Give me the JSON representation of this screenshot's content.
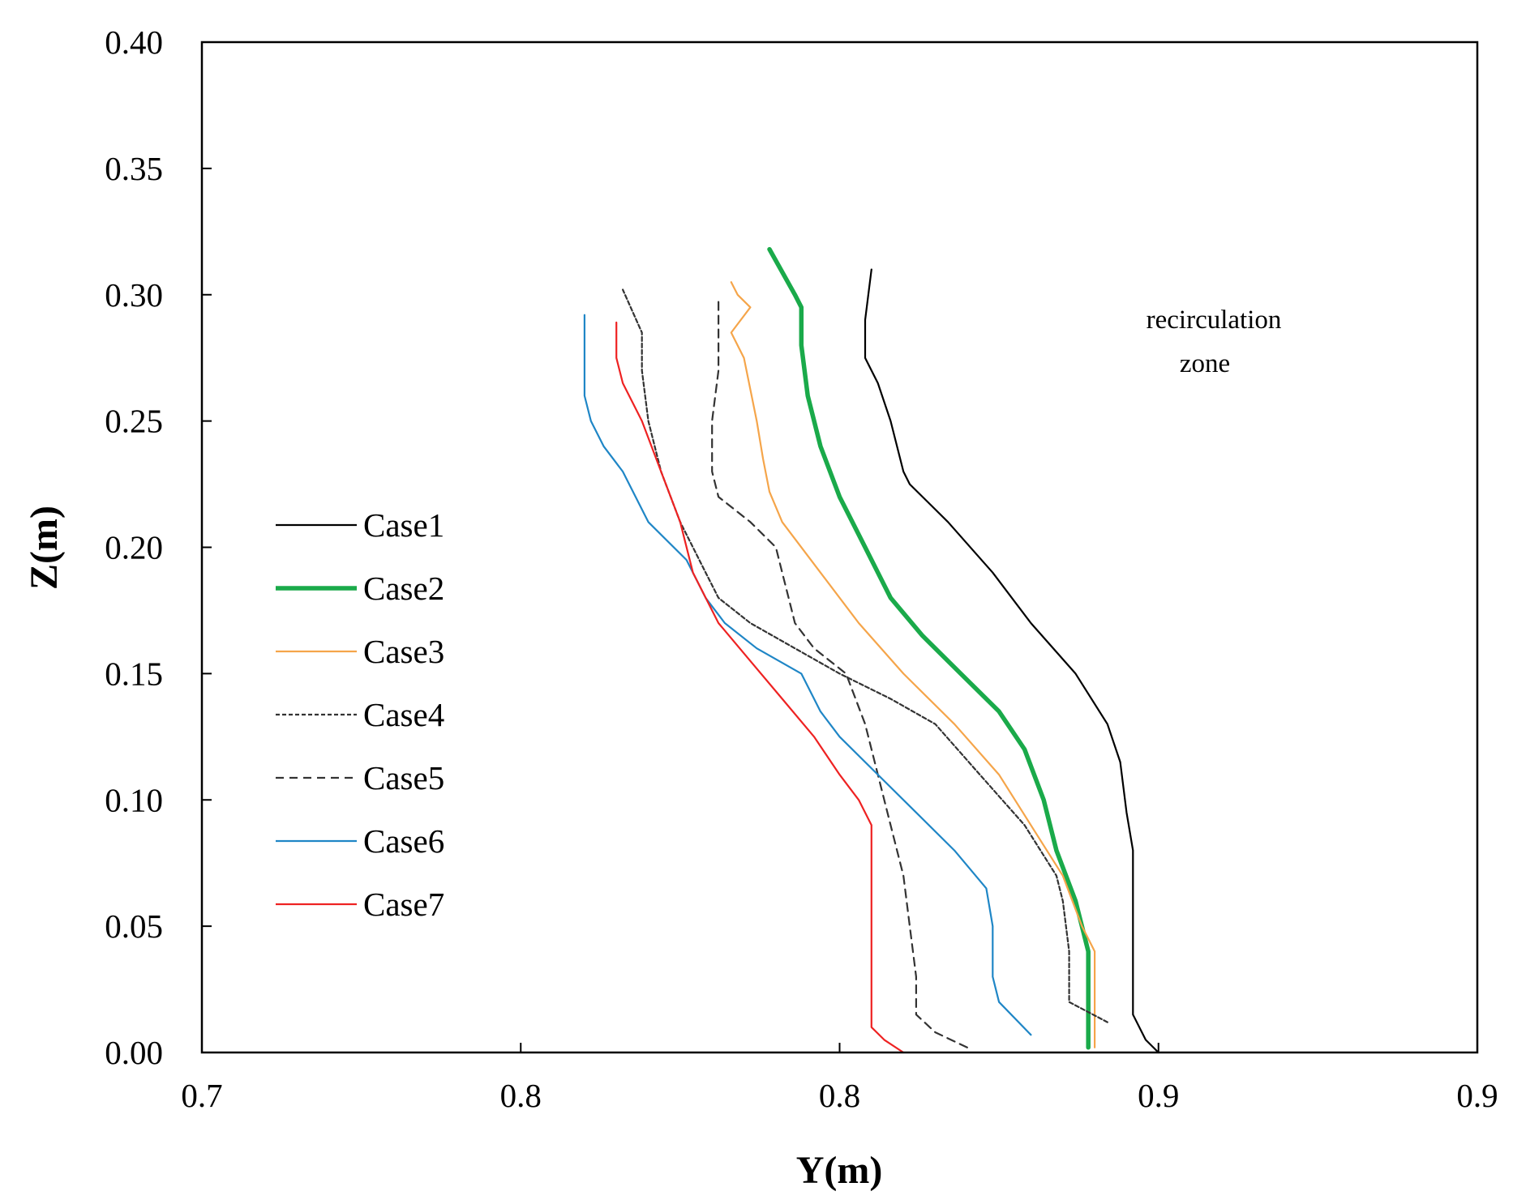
{
  "chart_data": {
    "type": "line",
    "title": "",
    "xlabel": "Y(m)",
    "ylabel": "Z(m)",
    "xlim": [
      0.7,
      0.9
    ],
    "ylim": [
      0.0,
      0.4
    ],
    "x_tick_labels": [
      "0.7",
      "0.8",
      "0.8",
      "0.9",
      "0.9"
    ],
    "y_tick_labels": [
      "0.00",
      "0.05",
      "0.10",
      "0.15",
      "0.20",
      "0.25",
      "0.30",
      "0.35",
      "0.40"
    ],
    "grid": false,
    "legend_position": "left",
    "annotation": [
      "recirculation",
      "zone"
    ],
    "series": [
      {
        "name": "Case1",
        "color": "#000000",
        "style": "solid",
        "weight": "thin",
        "points": [
          [
            0.85,
            0.0
          ],
          [
            0.848,
            0.005
          ],
          [
            0.846,
            0.015
          ],
          [
            0.846,
            0.03
          ],
          [
            0.846,
            0.05
          ],
          [
            0.846,
            0.08
          ],
          [
            0.845,
            0.095
          ],
          [
            0.844,
            0.115
          ],
          [
            0.842,
            0.13
          ],
          [
            0.837,
            0.15
          ],
          [
            0.83,
            0.17
          ],
          [
            0.824,
            0.19
          ],
          [
            0.817,
            0.21
          ],
          [
            0.811,
            0.225
          ],
          [
            0.81,
            0.23
          ],
          [
            0.808,
            0.25
          ],
          [
            0.806,
            0.265
          ],
          [
            0.804,
            0.275
          ],
          [
            0.804,
            0.29
          ],
          [
            0.805,
            0.31
          ]
        ]
      },
      {
        "name": "Case2",
        "color": "#1aaa4a",
        "style": "solid",
        "weight": "thick",
        "points": [
          [
            0.839,
            0.002
          ],
          [
            0.839,
            0.02
          ],
          [
            0.839,
            0.04
          ],
          [
            0.837,
            0.06
          ],
          [
            0.834,
            0.08
          ],
          [
            0.832,
            0.1
          ],
          [
            0.829,
            0.12
          ],
          [
            0.825,
            0.135
          ],
          [
            0.819,
            0.15
          ],
          [
            0.813,
            0.165
          ],
          [
            0.808,
            0.18
          ],
          [
            0.806,
            0.19
          ],
          [
            0.804,
            0.2
          ],
          [
            0.8,
            0.22
          ],
          [
            0.797,
            0.24
          ],
          [
            0.795,
            0.26
          ],
          [
            0.794,
            0.28
          ],
          [
            0.794,
            0.295
          ],
          [
            0.793,
            0.3
          ],
          [
            0.789,
            0.318
          ]
        ]
      },
      {
        "name": "Case3",
        "color": "#f5a54a",
        "style": "solid",
        "weight": "thin",
        "points": [
          [
            0.84,
            0.002
          ],
          [
            0.84,
            0.02
          ],
          [
            0.84,
            0.04
          ],
          [
            0.838,
            0.05
          ],
          [
            0.835,
            0.07
          ],
          [
            0.83,
            0.09
          ],
          [
            0.825,
            0.11
          ],
          [
            0.818,
            0.13
          ],
          [
            0.81,
            0.15
          ],
          [
            0.803,
            0.17
          ],
          [
            0.797,
            0.19
          ],
          [
            0.791,
            0.21
          ],
          [
            0.789,
            0.222
          ],
          [
            0.788,
            0.235
          ],
          [
            0.787,
            0.25
          ],
          [
            0.785,
            0.275
          ],
          [
            0.783,
            0.285
          ],
          [
            0.786,
            0.295
          ],
          [
            0.784,
            0.3
          ],
          [
            0.783,
            0.305
          ]
        ]
      },
      {
        "name": "Case4",
        "color": "#333333",
        "style": "dotted",
        "weight": "thin",
        "points": [
          [
            0.842,
            0.012
          ],
          [
            0.836,
            0.02
          ],
          [
            0.836,
            0.03
          ],
          [
            0.836,
            0.04
          ],
          [
            0.835,
            0.06
          ],
          [
            0.834,
            0.07
          ],
          [
            0.829,
            0.09
          ],
          [
            0.822,
            0.11
          ],
          [
            0.815,
            0.13
          ],
          [
            0.808,
            0.14
          ],
          [
            0.8,
            0.15
          ],
          [
            0.793,
            0.16
          ],
          [
            0.786,
            0.17
          ],
          [
            0.781,
            0.18
          ],
          [
            0.779,
            0.19
          ],
          [
            0.775,
            0.21
          ],
          [
            0.772,
            0.23
          ],
          [
            0.77,
            0.25
          ],
          [
            0.769,
            0.27
          ],
          [
            0.769,
            0.285
          ],
          [
            0.766,
            0.302
          ]
        ]
      },
      {
        "name": "Case5",
        "color": "#333333",
        "style": "dashed",
        "weight": "thin",
        "points": [
          [
            0.82,
            0.002
          ],
          [
            0.815,
            0.008
          ],
          [
            0.812,
            0.015
          ],
          [
            0.812,
            0.03
          ],
          [
            0.811,
            0.05
          ],
          [
            0.81,
            0.07
          ],
          [
            0.808,
            0.09
          ],
          [
            0.806,
            0.11
          ],
          [
            0.804,
            0.13
          ],
          [
            0.801,
            0.15
          ],
          [
            0.796,
            0.16
          ],
          [
            0.793,
            0.17
          ],
          [
            0.792,
            0.18
          ],
          [
            0.791,
            0.19
          ],
          [
            0.79,
            0.2
          ],
          [
            0.786,
            0.21
          ],
          [
            0.781,
            0.22
          ],
          [
            0.78,
            0.23
          ],
          [
            0.78,
            0.25
          ],
          [
            0.781,
            0.27
          ],
          [
            0.781,
            0.285
          ],
          [
            0.781,
            0.298
          ]
        ]
      },
      {
        "name": "Case6",
        "color": "#1f86c6",
        "style": "solid",
        "weight": "thin",
        "points": [
          [
            0.83,
            0.007
          ],
          [
            0.825,
            0.02
          ],
          [
            0.824,
            0.03
          ],
          [
            0.824,
            0.04
          ],
          [
            0.824,
            0.05
          ],
          [
            0.823,
            0.065
          ],
          [
            0.818,
            0.08
          ],
          [
            0.812,
            0.095
          ],
          [
            0.806,
            0.11
          ],
          [
            0.8,
            0.125
          ],
          [
            0.797,
            0.135
          ],
          [
            0.794,
            0.15
          ],
          [
            0.787,
            0.16
          ],
          [
            0.782,
            0.17
          ],
          [
            0.779,
            0.18
          ],
          [
            0.776,
            0.195
          ],
          [
            0.77,
            0.21
          ],
          [
            0.766,
            0.23
          ],
          [
            0.763,
            0.24
          ],
          [
            0.761,
            0.25
          ],
          [
            0.76,
            0.26
          ],
          [
            0.76,
            0.28
          ],
          [
            0.76,
            0.292
          ]
        ]
      },
      {
        "name": "Case7",
        "color": "#ee2222",
        "style": "solid",
        "weight": "thin",
        "points": [
          [
            0.81,
            0.0
          ],
          [
            0.807,
            0.005
          ],
          [
            0.805,
            0.01
          ],
          [
            0.805,
            0.02
          ],
          [
            0.805,
            0.04
          ],
          [
            0.805,
            0.06
          ],
          [
            0.805,
            0.08
          ],
          [
            0.805,
            0.09
          ],
          [
            0.803,
            0.1
          ],
          [
            0.8,
            0.11
          ],
          [
            0.796,
            0.125
          ],
          [
            0.791,
            0.14
          ],
          [
            0.786,
            0.155
          ],
          [
            0.781,
            0.17
          ],
          [
            0.777,
            0.19
          ],
          [
            0.775,
            0.21
          ],
          [
            0.772,
            0.23
          ],
          [
            0.769,
            0.25
          ],
          [
            0.766,
            0.265
          ],
          [
            0.765,
            0.275
          ],
          [
            0.765,
            0.289
          ]
        ]
      }
    ]
  }
}
